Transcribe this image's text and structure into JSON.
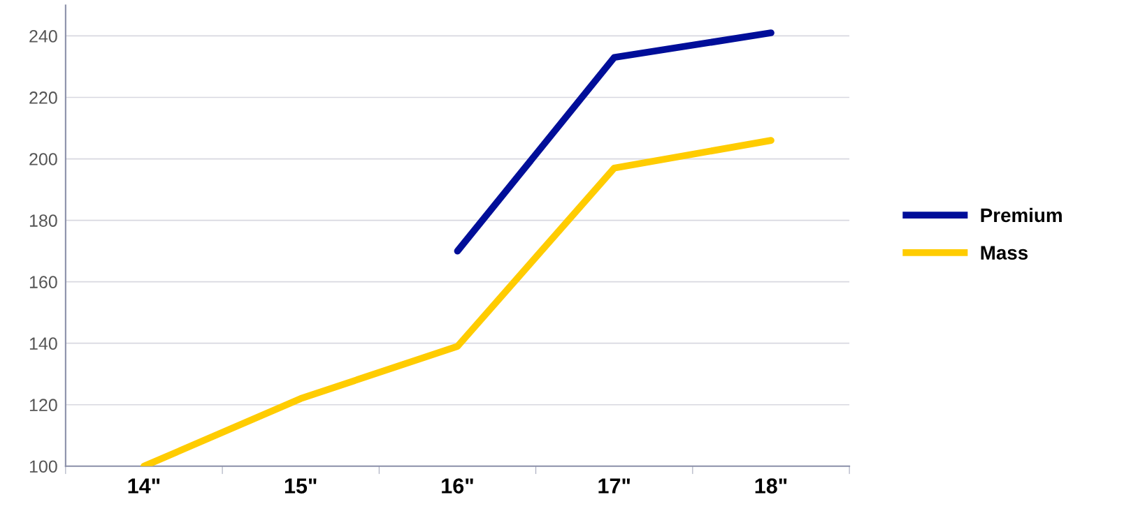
{
  "chart_data": {
    "type": "line",
    "categories": [
      "14\"",
      "15\"",
      "16\"",
      "17\"",
      "18\""
    ],
    "series": [
      {
        "name": "Premium",
        "color": "#000e99",
        "values": [
          null,
          null,
          170,
          233,
          241
        ]
      },
      {
        "name": "Mass",
        "color": "#ffcc00",
        "values": [
          100,
          122,
          139,
          197,
          206
        ]
      }
    ],
    "ylim": [
      100,
      250
    ],
    "yticks": [
      100,
      120,
      140,
      160,
      180,
      200,
      220,
      240
    ],
    "grid": "y",
    "legend": "right",
    "marker": "none",
    "line_style": "solid"
  }
}
